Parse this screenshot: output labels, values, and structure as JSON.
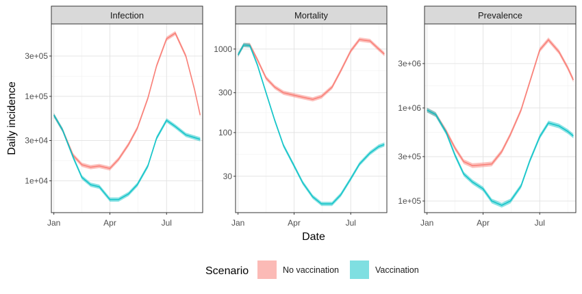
{
  "chart_data": {
    "type": "area",
    "x_axis_label": "Date",
    "y_axis_label": "Daily incidence",
    "x_ticks": [
      "Jan",
      "Apr",
      "Jul"
    ],
    "x_tick_dates": [
      "2021-01-01",
      "2021-04-01",
      "2021-07-01"
    ],
    "y_scale": "log",
    "grid": true,
    "legend": {
      "title": "Scenario",
      "position": "bottom",
      "entries": [
        {
          "label": "No vaccination",
          "color": "#F8766D"
        },
        {
          "label": "Vaccination",
          "color": "#00BFC4"
        }
      ]
    },
    "panels": [
      {
        "title": "Infection",
        "ylim": [
          4200,
          720000
        ],
        "y_ticks": [
          {
            "value": 10000,
            "label": "1e+04"
          },
          {
            "value": 30000,
            "label": "3e+04"
          },
          {
            "value": 100000,
            "label": "1e+05"
          },
          {
            "value": 300000,
            "label": "3e+05"
          }
        ],
        "series": [
          {
            "name": "No vaccination",
            "points": [
              [
                "2021-01-01",
                60000
              ],
              [
                "2021-01-15",
                40000
              ],
              [
                "2021-02-01",
                20000
              ],
              [
                "2021-02-15",
                15500
              ],
              [
                "2021-03-01",
                14500
              ],
              [
                "2021-03-15",
                15000
              ],
              [
                "2021-04-01",
                14000
              ],
              [
                "2021-04-15",
                18000
              ],
              [
                "2021-05-01",
                27000
              ],
              [
                "2021-05-15",
                42000
              ],
              [
                "2021-06-01",
                95000
              ],
              [
                "2021-06-15",
                230000
              ],
              [
                "2021-07-01",
                480000
              ],
              [
                "2021-07-15",
                560000
              ],
              [
                "2021-08-01",
                300000
              ],
              [
                "2021-08-15",
                120000
              ],
              [
                "2021-08-24",
                60000
              ]
            ]
          },
          {
            "name": "Vaccination",
            "points": [
              [
                "2021-01-01",
                60000
              ],
              [
                "2021-01-15",
                40000
              ],
              [
                "2021-02-01",
                19000
              ],
              [
                "2021-02-15",
                11000
              ],
              [
                "2021-03-01",
                9000
              ],
              [
                "2021-03-15",
                8500
              ],
              [
                "2021-04-01",
                6000
              ],
              [
                "2021-04-15",
                6000
              ],
              [
                "2021-05-01",
                7000
              ],
              [
                "2021-05-15",
                9000
              ],
              [
                "2021-06-01",
                15000
              ],
              [
                "2021-06-15",
                32000
              ],
              [
                "2021-07-01",
                52000
              ],
              [
                "2021-07-15",
                44000
              ],
              [
                "2021-08-01",
                35000
              ],
              [
                "2021-08-24",
                31000
              ]
            ]
          }
        ]
      },
      {
        "title": "Mortality",
        "ylim": [
          11,
          2000
        ],
        "y_ticks": [
          {
            "value": 30,
            "label": "30"
          },
          {
            "value": 100,
            "label": "100"
          },
          {
            "value": 300,
            "label": "300"
          },
          {
            "value": 1000,
            "label": "1000"
          }
        ],
        "series": [
          {
            "name": "No vaccination",
            "points": [
              [
                "2021-01-01",
                850
              ],
              [
                "2021-01-10",
                1120
              ],
              [
                "2021-01-20",
                1120
              ],
              [
                "2021-02-01",
                750
              ],
              [
                "2021-02-15",
                450
              ],
              [
                "2021-03-01",
                350
              ],
              [
                "2021-03-15",
                300
              ],
              [
                "2021-04-01",
                280
              ],
              [
                "2021-04-15",
                265
              ],
              [
                "2021-05-01",
                250
              ],
              [
                "2021-05-15",
                270
              ],
              [
                "2021-06-01",
                350
              ],
              [
                "2021-06-15",
                550
              ],
              [
                "2021-07-01",
                950
              ],
              [
                "2021-07-15",
                1300
              ],
              [
                "2021-08-01",
                1250
              ],
              [
                "2021-08-15",
                1000
              ],
              [
                "2021-08-24",
                870
              ]
            ]
          },
          {
            "name": "Vaccination",
            "points": [
              [
                "2021-01-01",
                850
              ],
              [
                "2021-01-10",
                1120
              ],
              [
                "2021-01-20",
                1100
              ],
              [
                "2021-02-01",
                650
              ],
              [
                "2021-02-15",
                300
              ],
              [
                "2021-03-01",
                140
              ],
              [
                "2021-03-15",
                70
              ],
              [
                "2021-04-01",
                40
              ],
              [
                "2021-04-15",
                25
              ],
              [
                "2021-05-01",
                17
              ],
              [
                "2021-05-15",
                14
              ],
              [
                "2021-06-01",
                14
              ],
              [
                "2021-06-15",
                18
              ],
              [
                "2021-07-01",
                28
              ],
              [
                "2021-07-15",
                42
              ],
              [
                "2021-08-01",
                57
              ],
              [
                "2021-08-15",
                68
              ],
              [
                "2021-08-24",
                72
              ]
            ]
          }
        ]
      },
      {
        "title": "Prevalence",
        "ylim": [
          75000,
          8000000
        ],
        "y_ticks": [
          {
            "value": 100000,
            "label": "1e+05"
          },
          {
            "value": 300000,
            "label": "3e+05"
          },
          {
            "value": 1000000,
            "label": "1e+06"
          },
          {
            "value": 3000000,
            "label": "3e+06"
          }
        ],
        "series": [
          {
            "name": "No vaccination",
            "points": [
              [
                "2021-01-01",
                950000
              ],
              [
                "2021-01-15",
                850000
              ],
              [
                "2021-02-01",
                560000
              ],
              [
                "2021-02-15",
                370000
              ],
              [
                "2021-03-01",
                265000
              ],
              [
                "2021-03-15",
                240000
              ],
              [
                "2021-04-01",
                245000
              ],
              [
                "2021-04-15",
                250000
              ],
              [
                "2021-05-01",
                340000
              ],
              [
                "2021-05-15",
                520000
              ],
              [
                "2021-06-01",
                950000
              ],
              [
                "2021-06-15",
                1900000
              ],
              [
                "2021-07-01",
                4200000
              ],
              [
                "2021-07-15",
                5400000
              ],
              [
                "2021-08-01",
                4000000
              ],
              [
                "2021-08-15",
                2700000
              ],
              [
                "2021-08-24",
                2000000
              ]
            ]
          },
          {
            "name": "Vaccination",
            "points": [
              [
                "2021-01-01",
                950000
              ],
              [
                "2021-01-15",
                850000
              ],
              [
                "2021-02-01",
                540000
              ],
              [
                "2021-02-15",
                310000
              ],
              [
                "2021-03-01",
                195000
              ],
              [
                "2021-03-15",
                160000
              ],
              [
                "2021-04-01",
                135000
              ],
              [
                "2021-04-15",
                100000
              ],
              [
                "2021-05-01",
                90000
              ],
              [
                "2021-05-15",
                100000
              ],
              [
                "2021-06-01",
                145000
              ],
              [
                "2021-06-15",
                270000
              ],
              [
                "2021-07-01",
                490000
              ],
              [
                "2021-07-15",
                690000
              ],
              [
                "2021-08-01",
                640000
              ],
              [
                "2021-08-15",
                560000
              ],
              [
                "2021-08-24",
                500000
              ]
            ]
          }
        ]
      }
    ]
  }
}
